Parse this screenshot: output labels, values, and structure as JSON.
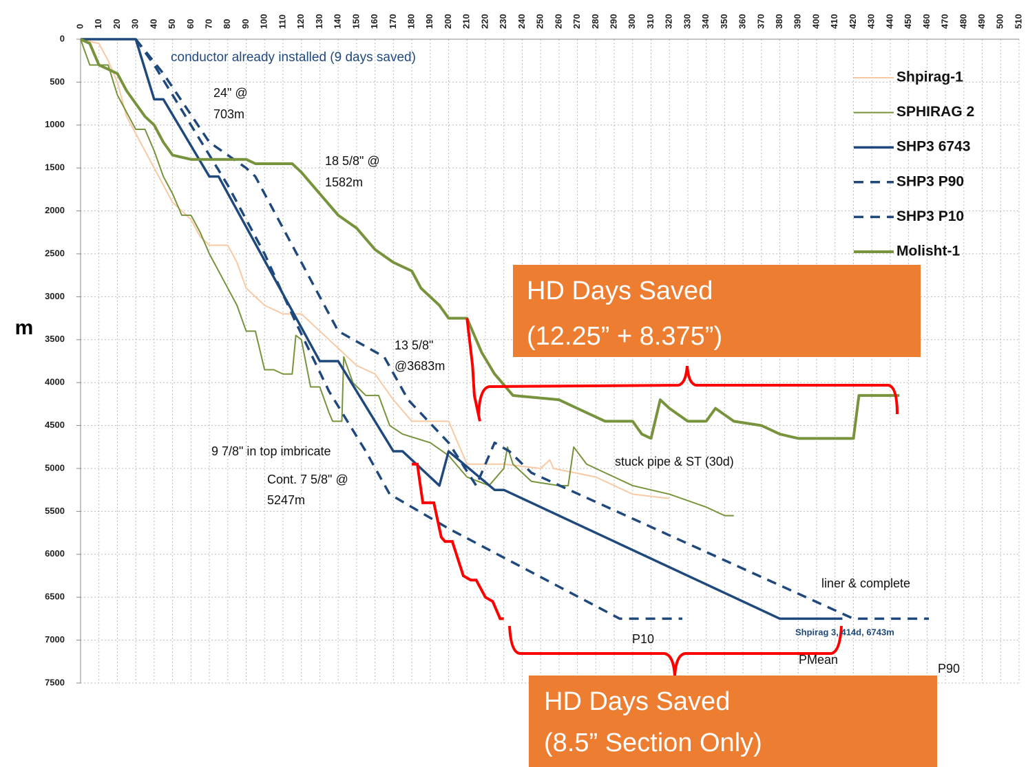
{
  "chart_data": {
    "type": "line",
    "y_label": "m",
    "xlim": [
      0,
      510
    ],
    "ylim": [
      0,
      7500
    ],
    "y_inverted": true,
    "x_axis_position": "top",
    "grid": true,
    "legend": "upper right",
    "xticks": [
      0,
      10,
      20,
      30,
      40,
      50,
      60,
      70,
      80,
      90,
      100,
      110,
      120,
      130,
      140,
      150,
      160,
      170,
      180,
      190,
      200,
      210,
      220,
      230,
      240,
      250,
      260,
      270,
      280,
      290,
      300,
      310,
      320,
      330,
      340,
      350,
      360,
      370,
      380,
      390,
      400,
      410,
      420,
      430,
      440,
      450,
      460,
      470,
      480,
      490,
      500,
      510
    ],
    "yticks": [
      0,
      500,
      1000,
      1500,
      2000,
      2500,
      3000,
      3500,
      4000,
      4500,
      5000,
      5500,
      6000,
      6500,
      7000,
      7500
    ],
    "series": [
      {
        "name": "Shpirag-1",
        "color": "#f9c9a4",
        "width": 2,
        "style": "solid",
        "x": [
          0,
          10,
          15,
          20,
          25,
          30,
          35,
          40,
          45,
          50,
          60,
          65,
          70,
          80,
          85,
          90,
          100,
          110,
          120,
          130,
          140,
          150,
          160,
          170,
          180,
          200,
          205,
          210,
          230,
          250,
          255,
          257,
          280,
          300,
          320
        ],
        "y": [
          0,
          50,
          250,
          500,
          900,
          1100,
          1300,
          1500,
          1700,
          1900,
          2100,
          2300,
          2400,
          2400,
          2600,
          2900,
          3100,
          3200,
          3200,
          3400,
          3600,
          3800,
          3900,
          4200,
          4450,
          4450,
          4700,
          4950,
          4950,
          5000,
          4900,
          5000,
          5100,
          5300,
          5350
        ]
      },
      {
        "name": "SPHIRAG 2",
        "color": "#77933c",
        "width": 2,
        "style": "solid",
        "x": [
          0,
          5,
          15,
          20,
          30,
          35,
          40,
          45,
          50,
          55,
          60,
          65,
          70,
          75,
          80,
          85,
          90,
          95,
          100,
          105,
          110,
          115,
          117,
          120,
          125,
          130,
          135,
          137,
          142,
          143,
          148,
          155,
          162,
          168,
          175,
          190,
          200,
          210,
          222,
          230,
          232,
          235,
          245,
          260,
          265,
          268,
          275,
          285,
          300,
          320,
          340,
          350,
          355
        ],
        "y": [
          0,
          300,
          300,
          650,
          1050,
          1050,
          1300,
          1600,
          1800,
          2050,
          2050,
          2250,
          2500,
          2700,
          2900,
          3100,
          3400,
          3400,
          3850,
          3850,
          3900,
          3900,
          3450,
          3500,
          4050,
          4050,
          4350,
          4450,
          4450,
          3700,
          4000,
          4150,
          4150,
          4500,
          4600,
          4700,
          4850,
          5100,
          5200,
          5000,
          4750,
          4950,
          5150,
          5200,
          5200,
          4750,
          4950,
          5050,
          5200,
          5300,
          5450,
          5550,
          5550
        ]
      },
      {
        "name": "SHP3 6743",
        "color": "#1f497d",
        "width": 3.5,
        "style": "solid",
        "x": [
          0,
          30,
          40,
          45,
          70,
          75,
          130,
          140,
          170,
          175,
          195,
          200,
          225,
          230,
          380,
          414
        ],
        "y": [
          0,
          0,
          700,
          700,
          1600,
          1600,
          3750,
          3750,
          4800,
          4800,
          5200,
          4800,
          5250,
          5250,
          6750,
          6750
        ]
      },
      {
        "name": "SHP3 P90",
        "color": "#1f497d",
        "width": 3.5,
        "style": "dashed",
        "x": [
          30,
          45,
          70,
          90,
          95,
          140,
          165,
          178,
          200,
          215,
          225,
          233,
          245,
          420,
          461
        ],
        "y": [
          0,
          400,
          1200,
          1500,
          1600,
          3400,
          3700,
          4200,
          4700,
          5200,
          4700,
          4800,
          5050,
          6750,
          6750
        ]
      },
      {
        "name": "SHP3 P10",
        "color": "#1f497d",
        "width": 3.5,
        "style": "dashed",
        "x": [
          30,
          40,
          60,
          80,
          100,
          117,
          135,
          155,
          168,
          200,
          293,
          327
        ],
        "y": [
          0,
          300,
          1000,
          1700,
          2500,
          3300,
          4100,
          4800,
          5300,
          5700,
          6750,
          6750
        ]
      },
      {
        "name": "Molisht-1",
        "color": "#77933c",
        "width": 4,
        "style": "solid",
        "x": [
          0,
          5,
          10,
          20,
          25,
          35,
          40,
          45,
          50,
          60,
          90,
          95,
          115,
          120,
          130,
          140,
          150,
          160,
          170,
          180,
          185,
          195,
          200,
          210,
          218,
          225,
          235,
          260,
          275,
          285,
          300,
          305,
          310,
          315,
          320,
          330,
          340,
          345,
          355,
          370,
          380,
          390,
          420,
          423,
          440,
          445
        ],
        "y": [
          0,
          50,
          300,
          400,
          600,
          900,
          1000,
          1200,
          1350,
          1400,
          1400,
          1450,
          1450,
          1550,
          1800,
          2050,
          2200,
          2450,
          2600,
          2700,
          2900,
          3100,
          3250,
          3250,
          3650,
          3900,
          4150,
          4200,
          4350,
          4450,
          4450,
          4600,
          4650,
          4200,
          4300,
          4450,
          4450,
          4300,
          4450,
          4500,
          4600,
          4650,
          4650,
          4150,
          4150,
          4150
        ]
      }
    ],
    "highlights": [
      {
        "color": "#ff0000",
        "x": [
          210,
          213,
          214,
          217
        ],
        "y": [
          3250,
          3800,
          4150,
          4450
        ]
      },
      {
        "color": "#ff0000",
        "x": [
          180,
          183,
          186,
          192,
          196,
          198,
          202,
          208,
          212,
          215,
          220,
          224,
          228,
          230
        ],
        "y": [
          4950,
          4950,
          5400,
          5400,
          5800,
          5850,
          5850,
          6250,
          6300,
          6300,
          6500,
          6550,
          6750,
          6750
        ]
      }
    ],
    "annotations": [
      {
        "lines": [
          "conductor already installed (9 days saved)"
        ]
      },
      {
        "lines": [
          "24\" @",
          "703m"
        ]
      },
      {
        "lines": [
          "18 5/8\" @",
          "1582m"
        ]
      },
      {
        "lines": [
          "13 5/8\"",
          "@3683m"
        ]
      },
      {
        "lines": [
          "9 7/8\" in top imbricate"
        ]
      },
      {
        "lines": [
          "Cont. 7 5/8\" @",
          "5247m"
        ]
      },
      {
        "lines": [
          "stuck pipe & ST (30d)"
        ]
      },
      {
        "lines": [
          "liner & complete"
        ]
      },
      {
        "lines": [
          "Shpirag 3, 414d, 6743m"
        ]
      },
      {
        "lines": [
          "P10"
        ]
      },
      {
        "lines": [
          "PMean"
        ]
      },
      {
        "lines": [
          "P90"
        ]
      },
      {
        "lines": [
          "HD Days Saved",
          " (12.25” + 8.375”)"
        ]
      },
      {
        "lines": [
          "HD Days Saved",
          " (8.5” Section Only)"
        ]
      }
    ]
  }
}
